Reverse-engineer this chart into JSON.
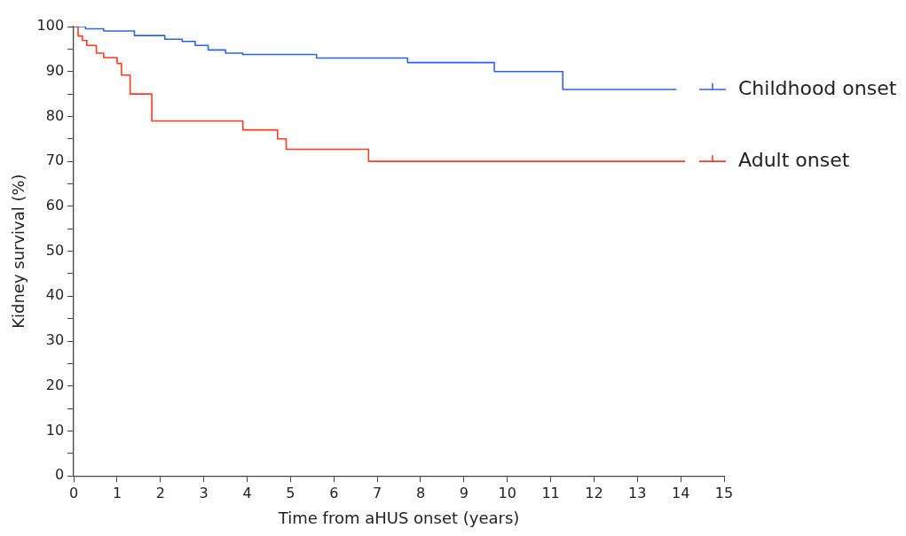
{
  "chart_data": {
    "type": "step",
    "xlabel": "Time from aHUS onset (years)",
    "ylabel": "Kidney survival (%)",
    "xlim": [
      0,
      15
    ],
    "xticks": [
      0,
      1,
      2,
      3,
      4,
      5,
      6,
      7,
      8,
      9,
      10,
      11,
      12,
      13,
      14,
      15
    ],
    "ylim": [
      0,
      100
    ],
    "yticks": [
      0,
      {
        "value": 5,
        "label": null
      },
      10,
      {
        "value": 15,
        "label": null
      },
      20,
      {
        "value": 25,
        "label": null
      },
      30,
      {
        "value": 35,
        "label": null
      },
      40,
      {
        "value": 45,
        "label": null
      },
      50,
      {
        "value": 55,
        "label": null
      },
      60,
      {
        "value": 65,
        "label": null
      },
      70,
      {
        "value": 75,
        "label": null
      },
      80,
      {
        "value": 85,
        "label": null
      },
      90,
      {
        "value": 95,
        "label": null
      },
      100
    ],
    "grid": false,
    "legend": "right",
    "marker": "none",
    "line_style": "solid",
    "series": [
      {
        "name": "Childhood onset",
        "color": "#3060f0",
        "x": [
          0,
          0.27,
          0.69,
          1.4,
          2.1,
          2.5,
          2.8,
          3.1,
          3.5,
          3.9,
          5.6,
          7.7,
          9.7,
          11.28,
          13.9
        ],
        "values": [
          100,
          99.5,
          99,
          98,
          97.2,
          96.7,
          95.8,
          94.8,
          94.1,
          93.8,
          93,
          92,
          90,
          86,
          86
        ]
      },
      {
        "name": "Adult onset",
        "color": "#ff3b22",
        "x": [
          0,
          0.1,
          0.2,
          0.3,
          0.52,
          0.69,
          1.0,
          1.1,
          1.3,
          1.8,
          3.9,
          4.7,
          4.9,
          6.8,
          14.1
        ],
        "values": [
          100,
          97.9,
          96.9,
          95.8,
          94.1,
          93.1,
          91.8,
          89.2,
          85,
          79,
          77,
          75,
          72.7,
          70,
          70
        ]
      }
    ]
  }
}
